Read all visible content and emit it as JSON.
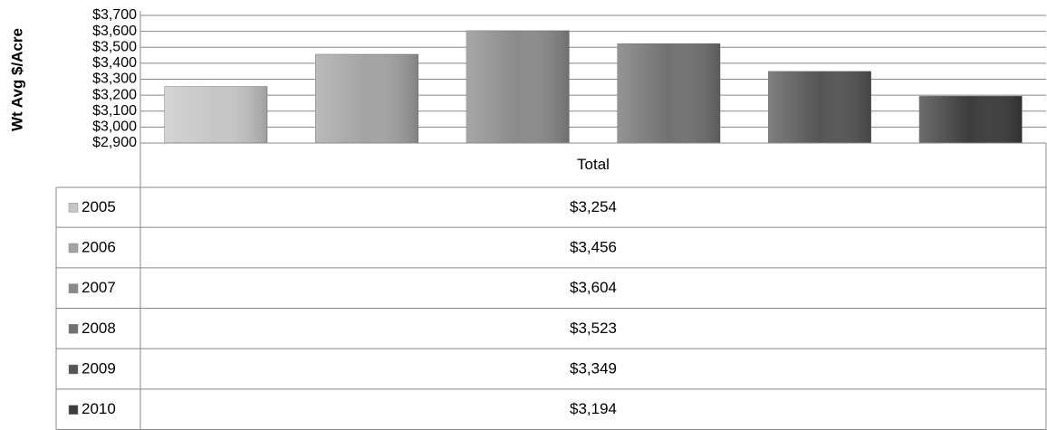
{
  "chart_data": {
    "type": "bar",
    "y_label": "Wt Avg $/Acre",
    "categories": [
      "Total"
    ],
    "series": [
      {
        "name": "2005",
        "color": "#c6c6c6",
        "values": [
          3254
        ],
        "value_labels": [
          "$3,254"
        ]
      },
      {
        "name": "2006",
        "color": "#a3a3a3",
        "values": [
          3456
        ],
        "value_labels": [
          "$3,456"
        ]
      },
      {
        "name": "2007",
        "color": "#8a8a8a",
        "values": [
          3604
        ],
        "value_labels": [
          "$3,604"
        ]
      },
      {
        "name": "2008",
        "color": "#717171",
        "values": [
          3523
        ],
        "value_labels": [
          "$3,523"
        ]
      },
      {
        "name": "2009",
        "color": "#555555",
        "values": [
          3349
        ],
        "value_labels": [
          "$3,349"
        ]
      },
      {
        "name": "2010",
        "color": "#3c3c3c",
        "values": [
          3194
        ],
        "value_labels": [
          "$3,194"
        ]
      }
    ],
    "ylim": [
      2900,
      3700
    ],
    "yticks": [
      {
        "value": 2900,
        "label": "$2,900"
      },
      {
        "value": 3000,
        "label": "$3,000"
      },
      {
        "value": 3100,
        "label": "$3,100"
      },
      {
        "value": 3200,
        "label": "$3,200"
      },
      {
        "value": 3300,
        "label": "$3,300"
      },
      {
        "value": 3400,
        "label": "$3,400"
      },
      {
        "value": 3500,
        "label": "$3,500"
      },
      {
        "value": 3600,
        "label": "$3,600"
      },
      {
        "value": 3700,
        "label": "$3,700"
      }
    ],
    "grid": true,
    "data_table": true
  }
}
